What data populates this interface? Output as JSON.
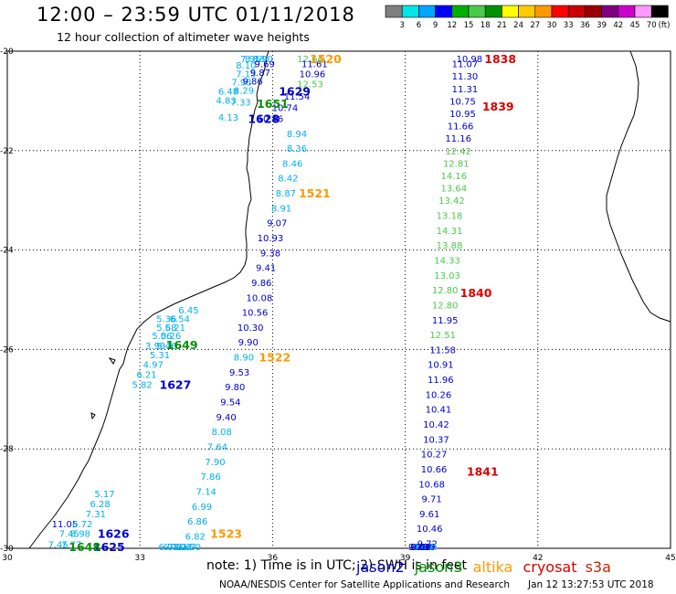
{
  "title": "12:00 – 23:59 UTC 01/11/2018",
  "subtitle": "12 hour collection of altimeter wave heights",
  "note": "note: 1) Time is in UTC; 2) SWH is in feet",
  "credit": "NOAA/NESDIS Center for Satellite Applications and Research",
  "generated": "Jan 12 13:27:53 UTC 2018",
  "colorbar": {
    "unit": "(ft)",
    "ticks": [
      "3",
      "6",
      "9",
      "12",
      "15",
      "18",
      "21",
      "24",
      "27",
      "30",
      "33",
      "36",
      "39",
      "42",
      "45",
      "70"
    ],
    "colors": [
      "#7f7f7f",
      "#00e5e5",
      "#00a6ff",
      "#0000ff",
      "#00b000",
      "#4bc94b",
      "#009000",
      "#ffff00",
      "#ffcc00",
      "#ff9900",
      "#ff0000",
      "#cc0000",
      "#990000",
      "#800080",
      "#cc00cc",
      "#ff99ff",
      "#000000"
    ]
  },
  "axes": {
    "lon_ticks": [
      "30",
      "33",
      "36",
      "39",
      "42",
      "45"
    ],
    "lat_ticks": [
      "-20",
      "-22",
      "-24",
      "-26",
      "-28",
      "-30"
    ]
  },
  "satellites": [
    {
      "name": "jason2",
      "color": "#0000cc"
    },
    {
      "name": "jason3",
      "color": "#009000"
    },
    {
      "name": "altika",
      "color": "#ff9900"
    },
    {
      "name": "cryosat",
      "color": "#dd0000"
    },
    {
      "name": "s3a",
      "color": "#cc2200"
    }
  ],
  "pass_labels": [
    {
      "text": "1520",
      "color": "#ff9900",
      "lon": 37.2,
      "lat": -20.0
    },
    {
      "text": "1838",
      "color": "#dd0000",
      "lon": 41.15,
      "lat": -20.0
    },
    {
      "text": "1629",
      "color": "#0000cc",
      "lon": 36.5,
      "lat": -20.8
    },
    {
      "text": "1651",
      "color": "#009000",
      "lon": 36.0,
      "lat": -21.05
    },
    {
      "text": "1839",
      "color": "#dd0000",
      "lon": 41.1,
      "lat": -21.1
    },
    {
      "text": "1628",
      "color": "#0000cc",
      "lon": 35.8,
      "lat": -21.35
    },
    {
      "text": "1521",
      "color": "#ff9900",
      "lon": 36.95,
      "lat": -22.85
    },
    {
      "text": "1840",
      "color": "#dd0000",
      "lon": 40.6,
      "lat": -24.85
    },
    {
      "text": "1649",
      "color": "#009000",
      "lon": 33.95,
      "lat": -25.9
    },
    {
      "text": "1522",
      "color": "#ff9900",
      "lon": 36.05,
      "lat": -26.15
    },
    {
      "text": "1627",
      "color": "#0000cc",
      "lon": 33.8,
      "lat": -26.7
    },
    {
      "text": "1841",
      "color": "#dd0000",
      "lon": 40.75,
      "lat": -28.45
    },
    {
      "text": "1626",
      "color": "#0000cc",
      "lon": 32.4,
      "lat": -29.7
    },
    {
      "text": "1523",
      "color": "#ff9900",
      "lon": 34.95,
      "lat": -29.7
    },
    {
      "text": "1625",
      "color": "#0000cc",
      "lon": 32.3,
      "lat": -29.98
    },
    {
      "text": "1648",
      "color": "#009000",
      "lon": 31.75,
      "lat": -29.98
    }
  ],
  "wave_heights": [
    {
      "text": "8.18",
      "color": "#00b0f0",
      "lon": 35.6,
      "lat": -19.94
    },
    {
      "text": "12.64",
      "color": "#4bc94b",
      "lon": 36.85,
      "lat": -19.98
    },
    {
      "text": "7.95",
      "color": "#00b0f0",
      "lon": 35.5,
      "lat": -20.1
    },
    {
      "text": "8.90",
      "color": "#00b0f0",
      "lon": 35.78,
      "lat": -20.1
    },
    {
      "text": "8.10",
      "color": "#00b0f0",
      "lon": 35.4,
      "lat": -20.28
    },
    {
      "text": "9.69",
      "color": "#0000cc",
      "lon": 35.82,
      "lat": -20.25
    },
    {
      "text": "11.61",
      "color": "#0000cc",
      "lon": 36.95,
      "lat": -20.25
    },
    {
      "text": "7.15",
      "color": "#00b0f0",
      "lon": 35.4,
      "lat": -20.45
    },
    {
      "text": "9.87",
      "color": "#0000cc",
      "lon": 35.72,
      "lat": -20.42
    },
    {
      "text": "10.96",
      "color": "#0000cc",
      "lon": 36.9,
      "lat": -20.45
    },
    {
      "text": "7.93",
      "color": "#00b0f0",
      "lon": 35.3,
      "lat": -20.62
    },
    {
      "text": "9.86",
      "color": "#0000cc",
      "lon": 35.55,
      "lat": -20.6
    },
    {
      "text": "12.53",
      "color": "#4bc94b",
      "lon": 36.85,
      "lat": -20.65
    },
    {
      "text": "6.48",
      "color": "#00b0f0",
      "lon": 35.0,
      "lat": -20.8
    },
    {
      "text": "8.29",
      "color": "#00b0f0",
      "lon": 35.35,
      "lat": -20.78
    },
    {
      "text": "11.54",
      "color": "#0000cc",
      "lon": 36.55,
      "lat": -20.9
    },
    {
      "text": "4.83",
      "color": "#00b0f0",
      "lon": 34.95,
      "lat": -20.98
    },
    {
      "text": "7.33",
      "color": "#00b0f0",
      "lon": 35.28,
      "lat": -21.02
    },
    {
      "text": "10.74",
      "color": "#0000cc",
      "lon": 36.28,
      "lat": -21.13
    },
    {
      "text": "4.13",
      "color": "#00b0f0",
      "lon": 35.0,
      "lat": -21.32
    },
    {
      "text": "10.46",
      "color": "#0000cc",
      "lon": 35.95,
      "lat": -21.35
    },
    {
      "text": "8.94",
      "color": "#00b0f0",
      "lon": 36.55,
      "lat": -21.65
    },
    {
      "text": "8.36",
      "color": "#00b0f0",
      "lon": 36.55,
      "lat": -21.95
    },
    {
      "text": "8.46",
      "color": "#00b0f0",
      "lon": 36.45,
      "lat": -22.25
    },
    {
      "text": "8.42",
      "color": "#00b0f0",
      "lon": 36.35,
      "lat": -22.55
    },
    {
      "text": "8.87",
      "color": "#00b0f0",
      "lon": 36.3,
      "lat": -22.85
    },
    {
      "text": "8.91",
      "color": "#00b0f0",
      "lon": 36.2,
      "lat": -23.15
    },
    {
      "text": "9.07",
      "color": "#0000cc",
      "lon": 36.1,
      "lat": -23.45
    },
    {
      "text": "10.93",
      "color": "#0000cc",
      "lon": 35.95,
      "lat": -23.75
    },
    {
      "text": "9.38",
      "color": "#0000cc",
      "lon": 35.95,
      "lat": -24.05
    },
    {
      "text": "9.41",
      "color": "#0000cc",
      "lon": 35.85,
      "lat": -24.35
    },
    {
      "text": "9.86",
      "color": "#0000cc",
      "lon": 35.75,
      "lat": -24.65
    },
    {
      "text": "10.08",
      "color": "#0000cc",
      "lon": 35.7,
      "lat": -24.95
    },
    {
      "text": "10.56",
      "color": "#0000cc",
      "lon": 35.6,
      "lat": -25.25
    },
    {
      "text": "10.30",
      "color": "#0000cc",
      "lon": 35.5,
      "lat": -25.55
    },
    {
      "text": "9.90",
      "color": "#0000cc",
      "lon": 35.45,
      "lat": -25.85
    },
    {
      "text": "8.90",
      "color": "#00b0f0",
      "lon": 35.35,
      "lat": -26.15
    },
    {
      "text": "9.53",
      "color": "#0000cc",
      "lon": 35.25,
      "lat": -26.45
    },
    {
      "text": "9.80",
      "color": "#0000cc",
      "lon": 35.15,
      "lat": -26.75
    },
    {
      "text": "9.54",
      "color": "#0000cc",
      "lon": 35.05,
      "lat": -27.05
    },
    {
      "text": "9.40",
      "color": "#0000cc",
      "lon": 34.95,
      "lat": -27.35
    },
    {
      "text": "8.08",
      "color": "#00b0f0",
      "lon": 34.85,
      "lat": -27.65
    },
    {
      "text": "7.64",
      "color": "#00b0f0",
      "lon": 34.75,
      "lat": -27.95
    },
    {
      "text": "7.90",
      "color": "#00b0f0",
      "lon": 34.7,
      "lat": -28.25
    },
    {
      "text": "7.86",
      "color": "#00b0f0",
      "lon": 34.6,
      "lat": -28.55
    },
    {
      "text": "7.14",
      "color": "#00b0f0",
      "lon": 34.5,
      "lat": -28.85
    },
    {
      "text": "6.99",
      "color": "#00b0f0",
      "lon": 34.4,
      "lat": -29.15
    },
    {
      "text": "6.86",
      "color": "#00b0f0",
      "lon": 34.3,
      "lat": -29.45
    },
    {
      "text": "6.82",
      "color": "#00b0f0",
      "lon": 34.25,
      "lat": -29.75
    },
    {
      "text": "7.50",
      "color": "#00b0f0",
      "lon": 34.15,
      "lat": -30.05
    },
    {
      "text": "6.67",
      "color": "#00b0f0",
      "lon": 34.05,
      "lat": -30.35
    },
    {
      "text": "7.04",
      "color": "#00b0f0",
      "lon": 33.95,
      "lat": -30.65
    },
    {
      "text": "7.21",
      "color": "#00b0f0",
      "lon": 33.85,
      "lat": -30.95
    },
    {
      "text": "6.71",
      "color": "#00b0f0",
      "lon": 33.75,
      "lat": -31.25
    },
    {
      "text": "6.08",
      "color": "#00b0f0",
      "lon": 33.65,
      "lat": -31.55
    },
    {
      "text": "6.45",
      "color": "#00b0f0",
      "lon": 34.1,
      "lat": -25.2
    },
    {
      "text": "5.36",
      "color": "#00b0f0",
      "lon": 33.6,
      "lat": -25.38
    },
    {
      "text": "6.54",
      "color": "#00b0f0",
      "lon": 33.9,
      "lat": -25.38
    },
    {
      "text": "5.58",
      "color": "#00b0f0",
      "lon": 33.6,
      "lat": -25.55
    },
    {
      "text": "6.21",
      "color": "#00b0f0",
      "lon": 33.8,
      "lat": -25.55
    },
    {
      "text": "5.06",
      "color": "#00b0f0",
      "lon": 33.5,
      "lat": -25.72
    },
    {
      "text": "5.26",
      "color": "#00b0f0",
      "lon": 33.7,
      "lat": -25.72
    },
    {
      "text": "3.99",
      "color": "#00b0f0",
      "lon": 33.35,
      "lat": -25.92
    },
    {
      "text": "5.46",
      "color": "#00b0f0",
      "lon": 33.6,
      "lat": -25.92
    },
    {
      "text": "5.31",
      "color": "#00b0f0",
      "lon": 33.45,
      "lat": -26.1
    },
    {
      "text": "4.97",
      "color": "#00b0f0",
      "lon": 33.3,
      "lat": -26.3
    },
    {
      "text": "6.21",
      "color": "#00b0f0",
      "lon": 33.15,
      "lat": -26.5
    },
    {
      "text": "5.82",
      "color": "#00b0f0",
      "lon": 33.05,
      "lat": -26.7
    },
    {
      "text": "10.98",
      "color": "#0000cc",
      "lon": 40.45,
      "lat": -20.0
    },
    {
      "text": "11.07",
      "color": "#0000cc",
      "lon": 40.35,
      "lat": -20.25
    },
    {
      "text": "11.30",
      "color": "#0000cc",
      "lon": 40.35,
      "lat": -20.5
    },
    {
      "text": "11.31",
      "color": "#0000cc",
      "lon": 40.35,
      "lat": -20.75
    },
    {
      "text": "10.75",
      "color": "#0000cc",
      "lon": 40.3,
      "lat": -21.0
    },
    {
      "text": "10.95",
      "color": "#0000cc",
      "lon": 40.3,
      "lat": -21.25
    },
    {
      "text": "11.66",
      "color": "#0000cc",
      "lon": 40.25,
      "lat": -21.5
    },
    {
      "text": "11.16",
      "color": "#0000cc",
      "lon": 40.2,
      "lat": -21.75
    },
    {
      "text": "12.42",
      "color": "#4bc94b",
      "lon": 40.2,
      "lat": -22.0
    },
    {
      "text": "12.81",
      "color": "#4bc94b",
      "lon": 40.15,
      "lat": -22.25
    },
    {
      "text": "14.16",
      "color": "#4bc94b",
      "lon": 40.1,
      "lat": -22.5
    },
    {
      "text": "13.64",
      "color": "#4bc94b",
      "lon": 40.1,
      "lat": -22.75
    },
    {
      "text": "13.42",
      "color": "#4bc94b",
      "lon": 40.05,
      "lat": -23.0
    },
    {
      "text": "13.18",
      "color": "#4bc94b",
      "lon": 40.0,
      "lat": -23.3
    },
    {
      "text": "14.31",
      "color": "#4bc94b",
      "lon": 40.0,
      "lat": -23.6
    },
    {
      "text": "13.88",
      "color": "#4bc94b",
      "lon": 40.0,
      "lat": -23.9
    },
    {
      "text": "14.33",
      "color": "#4bc94b",
      "lon": 39.95,
      "lat": -24.2
    },
    {
      "text": "13.03",
      "color": "#4bc94b",
      "lon": 39.95,
      "lat": -24.5
    },
    {
      "text": "12.80",
      "color": "#4bc94b",
      "lon": 39.9,
      "lat": -24.8
    },
    {
      "text": "12.80",
      "color": "#4bc94b",
      "lon": 39.9,
      "lat": -25.1
    },
    {
      "text": "11.95",
      "color": "#0000cc",
      "lon": 39.9,
      "lat": -25.4
    },
    {
      "text": "12.51",
      "color": "#4bc94b",
      "lon": 39.85,
      "lat": -25.7
    },
    {
      "text": "11.58",
      "color": "#0000cc",
      "lon": 39.85,
      "lat": -26.0
    },
    {
      "text": "10.91",
      "color": "#0000cc",
      "lon": 39.8,
      "lat": -26.3
    },
    {
      "text": "11.96",
      "color": "#0000cc",
      "lon": 39.8,
      "lat": -26.6
    },
    {
      "text": "10.26",
      "color": "#0000cc",
      "lon": 39.75,
      "lat": -26.9
    },
    {
      "text": "10.41",
      "color": "#0000cc",
      "lon": 39.75,
      "lat": -27.2
    },
    {
      "text": "10.42",
      "color": "#0000cc",
      "lon": 39.7,
      "lat": -27.5
    },
    {
      "text": "10.37",
      "color": "#0000cc",
      "lon": 39.7,
      "lat": -27.8
    },
    {
      "text": "10.27",
      "color": "#0000cc",
      "lon": 39.65,
      "lat": -28.1
    },
    {
      "text": "10.66",
      "color": "#0000cc",
      "lon": 39.65,
      "lat": -28.4
    },
    {
      "text": "10.68",
      "color": "#0000cc",
      "lon": 39.6,
      "lat": -28.7
    },
    {
      "text": "9.71",
      "color": "#0000cc",
      "lon": 39.6,
      "lat": -29.0
    },
    {
      "text": "9.61",
      "color": "#0000cc",
      "lon": 39.55,
      "lat": -29.3
    },
    {
      "text": "10.46",
      "color": "#0000cc",
      "lon": 39.55,
      "lat": -29.6
    },
    {
      "text": "9.72",
      "color": "#0000cc",
      "lon": 39.5,
      "lat": -29.9
    },
    {
      "text": "8.84",
      "color": "#00b0f0",
      "lon": 39.5,
      "lat": -30.2
    },
    {
      "text": "9.45",
      "color": "#0000cc",
      "lon": 39.45,
      "lat": -30.5
    },
    {
      "text": "9.39",
      "color": "#0000cc",
      "lon": 39.45,
      "lat": -30.8
    },
    {
      "text": "8.93",
      "color": "#00b0f0",
      "lon": 39.4,
      "lat": -31.1
    },
    {
      "text": "8.83",
      "color": "#00b0f0",
      "lon": 39.4,
      "lat": -31.4
    },
    {
      "text": "9.63",
      "color": "#0000cc",
      "lon": 39.35,
      "lat": -31.7
    },
    {
      "text": "9.46",
      "color": "#0000cc",
      "lon": 39.35,
      "lat": -32.0
    },
    {
      "text": "9.25",
      "color": "#0000cc",
      "lon": 39.3,
      "lat": -32.3
    },
    {
      "text": "5.17",
      "color": "#00b0f0",
      "lon": 32.2,
      "lat": -28.9
    },
    {
      "text": "6.28",
      "color": "#00b0f0",
      "lon": 32.1,
      "lat": -29.1
    },
    {
      "text": "7.31",
      "color": "#00b0f0",
      "lon": 32.0,
      "lat": -29.3
    },
    {
      "text": "11.05",
      "color": "#0000cc",
      "lon": 31.3,
      "lat": -29.5
    },
    {
      "text": "6.72",
      "color": "#00b0f0",
      "lon": 31.7,
      "lat": -29.5
    },
    {
      "text": "7.45",
      "color": "#00b0f0",
      "lon": 31.4,
      "lat": -29.7
    },
    {
      "text": "8.98",
      "color": "#00b0f0",
      "lon": 31.65,
      "lat": -29.7
    },
    {
      "text": "7.45",
      "color": "#00b0f0",
      "lon": 31.15,
      "lat": -29.92
    },
    {
      "text": "7.77",
      "color": "#00b0f0",
      "lon": 31.45,
      "lat": -29.92
    }
  ]
}
